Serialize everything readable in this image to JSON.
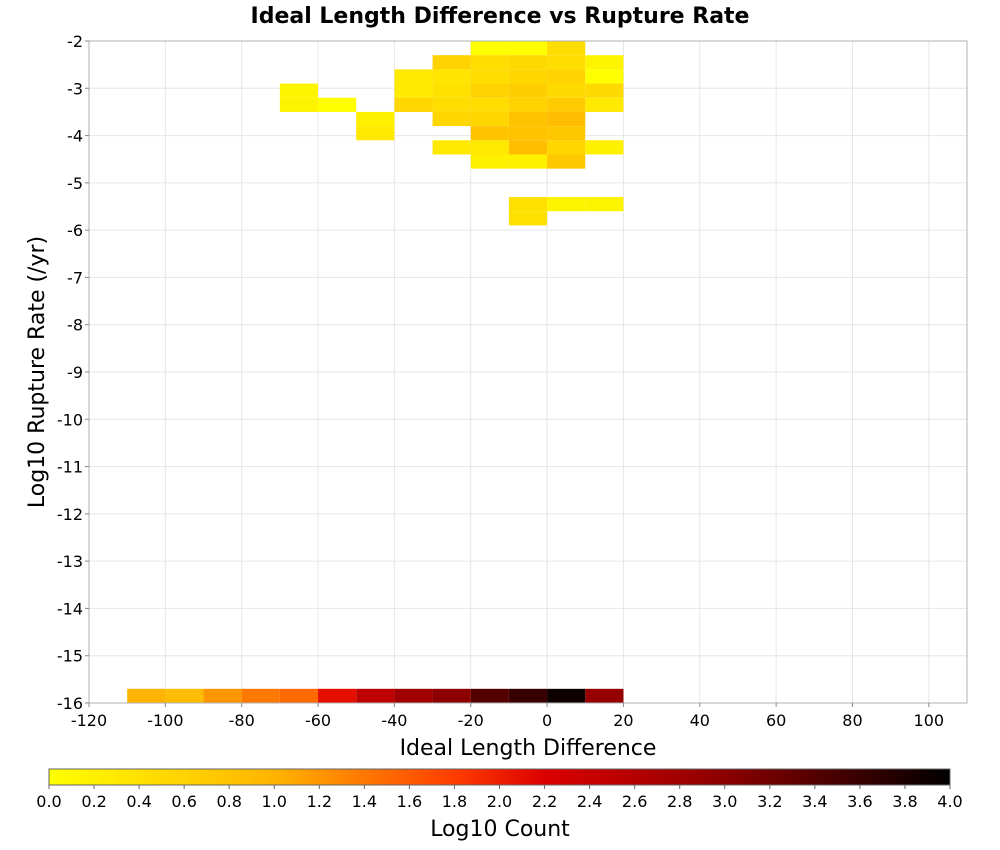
{
  "chart_data": {
    "type": "heatmap",
    "title": "Ideal Length Difference vs Rupture Rate",
    "xlabel": "Ideal Length Difference",
    "ylabel": "Log10 Rupture Rate (/yr)",
    "xlim": [
      -120,
      110
    ],
    "ylim": [
      -16,
      -2
    ],
    "x_bin_width": 10,
    "y_bin_height": 0.3,
    "xticks": [
      "-120",
      "-100",
      "-80",
      "-60",
      "-40",
      "-20",
      "0",
      "20",
      "40",
      "60",
      "80",
      "100"
    ],
    "yticks": [
      "-2",
      "-3",
      "-4",
      "-5",
      "-6",
      "-7",
      "-8",
      "-9",
      "-10",
      "-11",
      "-12",
      "-13",
      "-14",
      "-15",
      "-16"
    ],
    "grid": true,
    "colorbar": {
      "label": "Log10 Count",
      "min": 0.0,
      "max": 4.0,
      "ticks": [
        "0.0",
        "0.2",
        "0.4",
        "0.6",
        "0.8",
        "1.0",
        "1.2",
        "1.4",
        "1.6",
        "1.8",
        "2.0",
        "2.2",
        "2.4",
        "2.6",
        "2.8",
        "3.0",
        "3.2",
        "3.4",
        "3.6",
        "3.8",
        "4.0"
      ],
      "placement": "bottom"
    },
    "cells": [
      {
        "x": -20,
        "y": -2.3,
        "value": 0.0
      },
      {
        "x": -10,
        "y": -2.3,
        "value": 0.0
      },
      {
        "x": 0,
        "y": -2.3,
        "value": 0.45
      },
      {
        "x": -30,
        "y": -2.6,
        "value": 0.6
      },
      {
        "x": -20,
        "y": -2.6,
        "value": 0.45
      },
      {
        "x": -10,
        "y": -2.6,
        "value": 0.5
      },
      {
        "x": 0,
        "y": -2.6,
        "value": 0.45
      },
      {
        "x": 10,
        "y": -2.6,
        "value": 0.15
      },
      {
        "x": -40,
        "y": -2.9,
        "value": 0.3
      },
      {
        "x": -30,
        "y": -2.9,
        "value": 0.35
      },
      {
        "x": -20,
        "y": -2.9,
        "value": 0.45
      },
      {
        "x": -10,
        "y": -2.9,
        "value": 0.55
      },
      {
        "x": 0,
        "y": -2.9,
        "value": 0.6
      },
      {
        "x": 10,
        "y": -2.9,
        "value": 0.0
      },
      {
        "x": -70,
        "y": -3.2,
        "value": 0.15
      },
      {
        "x": -40,
        "y": -3.2,
        "value": 0.3
      },
      {
        "x": -30,
        "y": -3.2,
        "value": 0.4
      },
      {
        "x": -20,
        "y": -3.2,
        "value": 0.6
      },
      {
        "x": -10,
        "y": -3.2,
        "value": 0.65
      },
      {
        "x": 0,
        "y": -3.2,
        "value": 0.5
      },
      {
        "x": 10,
        "y": -3.2,
        "value": 0.5
      },
      {
        "x": -70,
        "y": -3.5,
        "value": 0.15
      },
      {
        "x": -60,
        "y": -3.5,
        "value": 0.0
      },
      {
        "x": -40,
        "y": -3.5,
        "value": 0.55
      },
      {
        "x": -30,
        "y": -3.5,
        "value": 0.45
      },
      {
        "x": -20,
        "y": -3.5,
        "value": 0.45
      },
      {
        "x": -10,
        "y": -3.5,
        "value": 0.6
      },
      {
        "x": 0,
        "y": -3.5,
        "value": 0.7
      },
      {
        "x": 10,
        "y": -3.5,
        "value": 0.3
      },
      {
        "x": -50,
        "y": -3.8,
        "value": 0.2
      },
      {
        "x": -30,
        "y": -3.8,
        "value": 0.55
      },
      {
        "x": -20,
        "y": -3.8,
        "value": 0.55
      },
      {
        "x": -10,
        "y": -3.8,
        "value": 0.8
      },
      {
        "x": 0,
        "y": -3.8,
        "value": 0.9
      },
      {
        "x": -50,
        "y": -4.1,
        "value": 0.3
      },
      {
        "x": -20,
        "y": -4.1,
        "value": 0.8
      },
      {
        "x": -10,
        "y": -4.1,
        "value": 0.8
      },
      {
        "x": 0,
        "y": -4.1,
        "value": 0.75
      },
      {
        "x": -30,
        "y": -4.4,
        "value": 0.3
      },
      {
        "x": -20,
        "y": -4.4,
        "value": 0.3
      },
      {
        "x": -10,
        "y": -4.4,
        "value": 0.85
      },
      {
        "x": 0,
        "y": -4.4,
        "value": 0.55
      },
      {
        "x": 10,
        "y": -4.4,
        "value": 0.2
      },
      {
        "x": -20,
        "y": -4.7,
        "value": 0.2
      },
      {
        "x": -10,
        "y": -4.7,
        "value": 0.2
      },
      {
        "x": 0,
        "y": -4.7,
        "value": 0.75
      },
      {
        "x": -10,
        "y": -5.6,
        "value": 0.4
      },
      {
        "x": 0,
        "y": -5.6,
        "value": 0.15
      },
      {
        "x": 10,
        "y": -5.6,
        "value": 0.15
      },
      {
        "x": -10,
        "y": -5.9,
        "value": 0.4
      },
      {
        "x": -110,
        "y": -16.0,
        "value": 1.0
      },
      {
        "x": -100,
        "y": -16.0,
        "value": 0.9
      },
      {
        "x": -90,
        "y": -16.0,
        "value": 1.2
      },
      {
        "x": -80,
        "y": -16.0,
        "value": 1.4
      },
      {
        "x": -70,
        "y": -16.0,
        "value": 1.5
      },
      {
        "x": -60,
        "y": -16.0,
        "value": 2.1
      },
      {
        "x": -50,
        "y": -16.0,
        "value": 2.5
      },
      {
        "x": -40,
        "y": -16.0,
        "value": 2.8
      },
      {
        "x": -30,
        "y": -16.0,
        "value": 3.0
      },
      {
        "x": -20,
        "y": -16.0,
        "value": 3.4
      },
      {
        "x": -10,
        "y": -16.0,
        "value": 3.6
      },
      {
        "x": 0,
        "y": -16.0,
        "value": 3.9
      },
      {
        "x": 10,
        "y": -16.0,
        "value": 2.9
      }
    ]
  }
}
